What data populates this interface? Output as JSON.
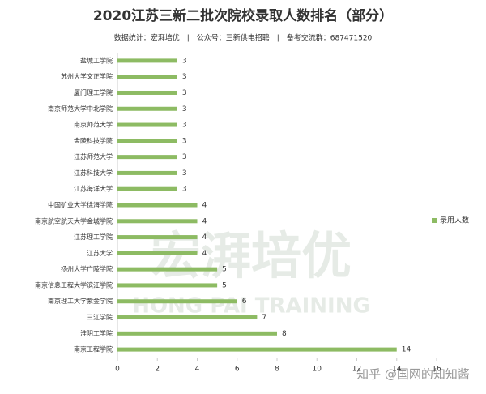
{
  "chart_data": {
    "type": "bar",
    "orientation": "horizontal",
    "title": "2020江苏三新二批次院校录取人数排名（部分）",
    "subtitle": "数据统计：宏湃培优　|　公众号：三新供电招聘　|　备考交流群：687471520",
    "categories": [
      "盐城工学院",
      "苏州大学文正学院",
      "厦门理工学院",
      "南京师范大学中北学院",
      "南京师范大学",
      "金陵科技学院",
      "江苏师范大学",
      "江苏科技大学",
      "江苏海洋大学",
      "中国矿业大学徐海学院",
      "南京航空航天大学金城学院",
      "江苏理工学院",
      "江苏大学",
      "扬州大学广陵学院",
      "南京信息工程大学滨江学院",
      "南京理工大学紫金学院",
      "三江学院",
      "淮阴工学院",
      "南京工程学院"
    ],
    "series": [
      {
        "name": "录用人数",
        "color": "#8dbb63",
        "values": [
          3,
          3,
          3,
          3,
          3,
          3,
          3,
          3,
          3,
          4,
          4,
          4,
          4,
          5,
          5,
          6,
          7,
          8,
          14
        ]
      }
    ],
    "xlim": [
      0,
      16
    ],
    "xticks": [
      0,
      2,
      4,
      6,
      8,
      10,
      12,
      14,
      16
    ],
    "legend": "right",
    "watermark": [
      "宏湃培优",
      "HONG PAI TRAINING",
      "知乎 @国网的知知酱"
    ]
  }
}
